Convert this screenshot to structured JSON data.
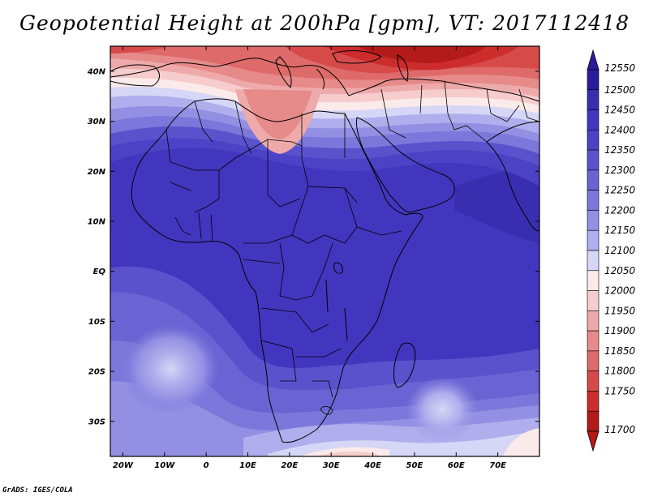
{
  "title": "Geopotential Height at 200hPa [gpm], VT: 2017112418",
  "credit": "GrADS: IGES/COLA",
  "map": {
    "projection": "latlon",
    "lon_range": [
      -23,
      80
    ],
    "lat_range": [
      -37,
      45
    ],
    "lon_ticks": [
      "20W",
      "10W",
      "0",
      "10E",
      "20E",
      "30E",
      "40E",
      "50E",
      "60E",
      "70E"
    ],
    "lat_ticks": [
      "40N",
      "30N",
      "20N",
      "10N",
      "EQ",
      "10S",
      "20S",
      "30S"
    ],
    "variable": "Geopotential Height",
    "level": "200hPa",
    "units": "gpm",
    "valid_time": "2017112418"
  },
  "colorbar": {
    "levels": [
      "12550",
      "12500",
      "12450",
      "12400",
      "12350",
      "12300",
      "12250",
      "12200",
      "12150",
      "12100",
      "12050",
      "12000",
      "11950",
      "11900",
      "11850",
      "11800",
      "11750",
      "11700"
    ],
    "colors": [
      "#2a1c9c",
      "#3a2eb0",
      "#4236bf",
      "#4b42c6",
      "#5a52cc",
      "#6a63d3",
      "#7c77db",
      "#938fe3",
      "#b0aeec",
      "#d6d6f6",
      "#fbeaea",
      "#f6cccc",
      "#eeaaaa",
      "#e68a8a",
      "#de6a6a",
      "#d64a4a",
      "#cc2c2c",
      "#b31a1a"
    ],
    "extend": "both"
  }
}
